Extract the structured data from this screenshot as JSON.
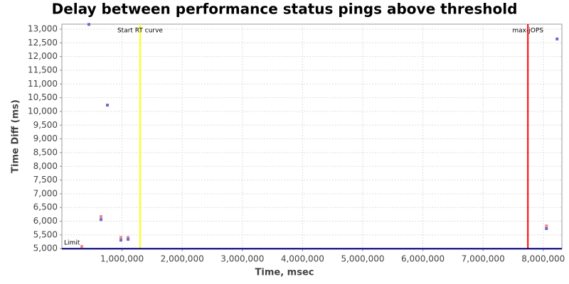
{
  "chart_data": {
    "type": "scatter",
    "title": "Delay between performance status pings above threshold",
    "x_label": "Time, msec",
    "y_label": "Time Diff (ms)",
    "xlim": [
      0,
      8310000
    ],
    "ylim": [
      4980,
      13180
    ],
    "xticks": [
      {
        "value": 1000000,
        "label": "1,000,000"
      },
      {
        "value": 2000000,
        "label": "2,000,000"
      },
      {
        "value": 3000000,
        "label": "3,000,000"
      },
      {
        "value": 4000000,
        "label": "4,000,000"
      },
      {
        "value": 5000000,
        "label": "5,000,000"
      },
      {
        "value": 6000000,
        "label": "6,000,000"
      },
      {
        "value": 7000000,
        "label": "7,000,000"
      },
      {
        "value": 8000000,
        "label": "8,000,000"
      }
    ],
    "yticks": [
      {
        "value": 5000,
        "label": "5,000"
      },
      {
        "value": 5500,
        "label": "5,500"
      },
      {
        "value": 6000,
        "label": "6,000"
      },
      {
        "value": 6500,
        "label": "6,500"
      },
      {
        "value": 7000,
        "label": "7,000"
      },
      {
        "value": 7500,
        "label": "7,500"
      },
      {
        "value": 8000,
        "label": "8,000"
      },
      {
        "value": 8500,
        "label": "8,500"
      },
      {
        "value": 9000,
        "label": "9,000"
      },
      {
        "value": 9500,
        "label": "9,500"
      },
      {
        "value": 10000,
        "label": "10,000"
      },
      {
        "value": 10500,
        "label": "10,500"
      },
      {
        "value": 11000,
        "label": "11,000"
      },
      {
        "value": 11500,
        "label": "11,500"
      },
      {
        "value": 12000,
        "label": "12,000"
      },
      {
        "value": 12500,
        "label": "12,500"
      },
      {
        "value": 13000,
        "label": "13,000"
      }
    ],
    "grid": true,
    "series": [
      {
        "color": "#f08a8a",
        "x": [
          331000,
          650000,
          981000,
          1100000,
          8053000
        ],
        "values": [
          5080,
          6170,
          5410,
          5410,
          5830
        ]
      },
      {
        "color": "#6a6ad0",
        "x": [
          449000,
          650000,
          757000,
          981000,
          1100000,
          8053000,
          8230000
        ],
        "values": [
          13170,
          6060,
          10230,
          5310,
          5340,
          5730,
          12640
        ]
      }
    ],
    "x_markers": [
      {
        "label": "Start RT curve",
        "value": 1300000,
        "color": "#ffff00"
      },
      {
        "label": "max-jOPS",
        "value": 7745000,
        "color": "#ff0000"
      }
    ],
    "y_markers": [
      {
        "label": "Limit",
        "value": 5000,
        "color": "#000080"
      }
    ]
  }
}
